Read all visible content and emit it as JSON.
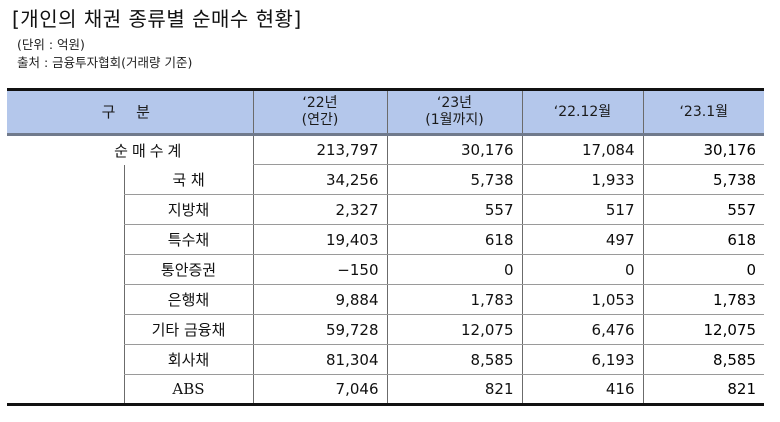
{
  "document": {
    "title": "[개인의 채권 종류별 순매수 현황]",
    "unit": "(단위 : 억원)",
    "source": "출처 : 금융투자협회(거래량 기준)"
  },
  "table": {
    "headers": {
      "category": "구 분",
      "col1_line1": "‘22년",
      "col1_line2": "(연간)",
      "col2_line1": "‘23년",
      "col2_line2": "(1월까지)",
      "col3": "‘22.12월",
      "col4": "‘23.1월"
    },
    "total": {
      "label": "순매수계",
      "values": [
        "213,797",
        "30,176",
        "17,084",
        "30,176"
      ]
    },
    "rows": [
      {
        "label": "국 채",
        "values": [
          "34,256",
          "5,738",
          "1,933",
          "5,738"
        ]
      },
      {
        "label": "지방채",
        "values": [
          "2,327",
          "557",
          "517",
          "557"
        ]
      },
      {
        "label": "특수채",
        "values": [
          "19,403",
          "618",
          "497",
          "618"
        ]
      },
      {
        "label": "통안증권",
        "values": [
          "−150",
          "0",
          "0",
          "0"
        ]
      },
      {
        "label": "은행채",
        "values": [
          "9,884",
          "1,783",
          "1,053",
          "1,783"
        ]
      },
      {
        "label": "기타 금융채",
        "values": [
          "59,728",
          "12,075",
          "6,476",
          "12,075"
        ]
      },
      {
        "label": "회사채",
        "values": [
          "81,304",
          "8,585",
          "6,193",
          "8,585"
        ]
      },
      {
        "label": "ABS",
        "values": [
          "7,046",
          "821",
          "416",
          "821"
        ]
      }
    ]
  },
  "colors": {
    "header_bg": "#b4c7eb",
    "rule": "#111111",
    "grid": "#9a9a9a"
  }
}
